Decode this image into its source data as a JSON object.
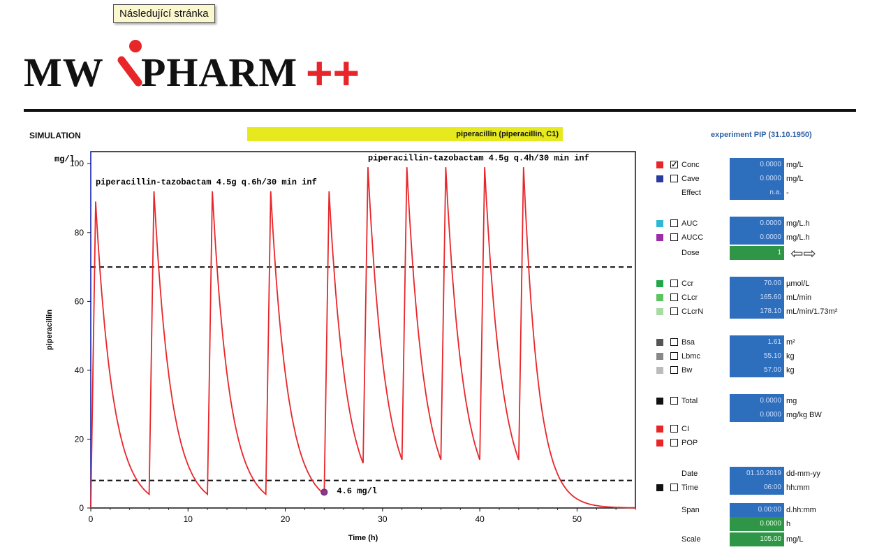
{
  "tooltip": "Následující stránka",
  "logo": {
    "mw": "MW",
    "pharm": "PHARM",
    "plus": "++"
  },
  "header": {
    "simulation_label": "SIMULATION",
    "drug_label": "piperacillin (piperacillin, C1)",
    "experiment": "experiment PIP (31.10.1950)"
  },
  "chart_data": {
    "type": "line",
    "ylabel": "piperacillin",
    "yunit": "mg/l",
    "xlabel": "Time (h)",
    "xlim": [
      0,
      56
    ],
    "ylim": [
      0,
      100
    ],
    "xticks": [
      "0",
      "10",
      "20",
      "30",
      "40",
      "50"
    ],
    "yticks": [
      "0",
      "20",
      "40",
      "60",
      "80",
      "100"
    ],
    "grid": false,
    "thresholds": [
      70,
      8
    ],
    "annotations": [
      {
        "text": "piperacillin-tazobactam 4.5g q.6h/30 min inf",
        "x": 0.5,
        "y": 94
      },
      {
        "text": "piperacillin-tazobactam 4.5g q.4h/30 min inf",
        "x": 28.5,
        "y": 101
      },
      {
        "text": "4.6 mg/l",
        "x": 25.3,
        "y": 4.3
      }
    ],
    "marker": {
      "x": 24,
      "y": 4.6
    },
    "series": [
      {
        "color": "#e8262a",
        "doses": [
          {
            "t": 0,
            "peak": 89,
            "trough": 4
          },
          {
            "t": 6,
            "peak": 92,
            "trough": 4
          },
          {
            "t": 12,
            "peak": 92,
            "trough": 4
          },
          {
            "t": 18,
            "peak": 92,
            "trough": 4
          },
          {
            "t": 24,
            "peak": 92,
            "trough": 13
          },
          {
            "t": 28,
            "peak": 99,
            "trough": 14
          },
          {
            "t": 32,
            "peak": 99,
            "trough": 14
          },
          {
            "t": 36,
            "peak": 99,
            "trough": 14
          },
          {
            "t": 40,
            "peak": 99,
            "trough": 14
          },
          {
            "t": 44,
            "peak": 99,
            "trough": 0
          }
        ]
      }
    ]
  },
  "panel": {
    "conc": {
      "label": "Conc",
      "value": "0.0000",
      "unit": "mg/L",
      "color": "#e8262a"
    },
    "cave": {
      "label": "Cave",
      "value": "0.0000",
      "unit": "mg/L",
      "color": "#2b3a9e"
    },
    "effect": {
      "label": "Effect",
      "value": "n.a.",
      "unit": "-"
    },
    "auc": {
      "label": "AUC",
      "value": "0.0000",
      "unit": "mg/L.h",
      "color": "#2fb8d6"
    },
    "aucc": {
      "label": "AUCC",
      "value": "0.0000",
      "unit": "mg/L.h",
      "color": "#9a2ea8"
    },
    "dose": {
      "label": "Dose",
      "value": "1",
      "arrows": "⇦⇨"
    },
    "ccr": {
      "label": "Ccr",
      "value": "70.00",
      "unit": "µmol/L",
      "color": "#22a84a"
    },
    "clcr": {
      "label": "CLcr",
      "value": "165.60",
      "unit": "mL/min",
      "color": "#5bc45e"
    },
    "clcrn": {
      "label": "CLcrN",
      "value": "178.10",
      "unit": "mL/min/1.73m²",
      "color": "#a9dca3"
    },
    "bsa": {
      "label": "Bsa",
      "value": "1.61",
      "unit": "m²",
      "color": "#555555"
    },
    "lbmc": {
      "label": "Lbmc",
      "value": "55.10",
      "unit": "kg",
      "color": "#888888"
    },
    "bw": {
      "label": "Bw",
      "value": "57.00",
      "unit": "kg",
      "color": "#bbbbbb"
    },
    "total": {
      "label": "Total",
      "value1": "0.0000",
      "unit1": "mg",
      "value2": "0.0000",
      "unit2": "mg/kg BW",
      "color": "#111111"
    },
    "ci": {
      "label": "CI",
      "color": "#e8262a"
    },
    "pop": {
      "label": "POP",
      "color": "#e8262a"
    },
    "date": {
      "label": "Date",
      "value": "01.10.2019",
      "unit": "dd-mm-yy"
    },
    "time": {
      "label": "Time",
      "value": "06:00",
      "unit": "hh:mm",
      "color": "#111111"
    },
    "span": {
      "label": "Span",
      "value": "0.00:00",
      "unit": "d.hh:mm"
    },
    "hours": {
      "value": "0.0000",
      "unit": "h"
    },
    "scale": {
      "label": "Scale",
      "value": "105.00",
      "unit": "mg/L"
    }
  }
}
